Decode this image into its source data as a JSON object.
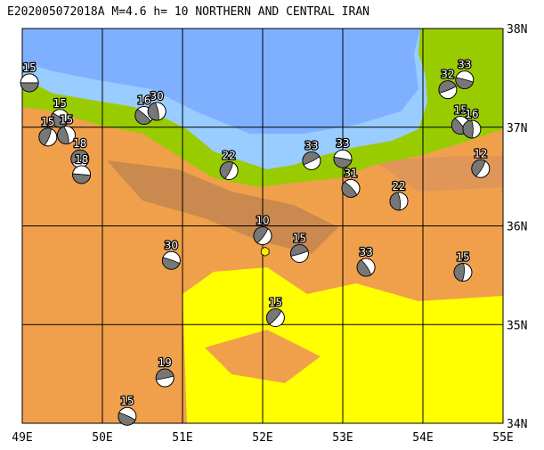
{
  "map": {
    "title": "E202005072018A M=4.6 h= 10 NORTHERN AND CENTRAL IRAN",
    "xlim": [
      49,
      55
    ],
    "ylim": [
      34,
      38
    ],
    "lon_ticks": [
      {
        "value": 49,
        "label": "49E"
      },
      {
        "value": 50,
        "label": "50E"
      },
      {
        "value": 51,
        "label": "51E"
      },
      {
        "value": 52,
        "label": "52E"
      },
      {
        "value": 53,
        "label": "53E"
      },
      {
        "value": 54,
        "label": "54E"
      },
      {
        "value": 55,
        "label": "55E"
      }
    ],
    "lat_ticks": [
      {
        "value": 34,
        "label": "34N"
      },
      {
        "value": 35,
        "label": "35N"
      },
      {
        "value": 36,
        "label": "36N"
      },
      {
        "value": 37,
        "label": "37N"
      },
      {
        "value": 38,
        "label": "38N"
      }
    ],
    "epicenter": {
      "lon": 52.03,
      "lat": 35.74
    },
    "events": [
      {
        "lon": 49.09,
        "lat": 37.45,
        "depth": 15
      },
      {
        "lon": 49.47,
        "lat": 37.09,
        "depth": 15
      },
      {
        "lon": 49.55,
        "lat": 36.92,
        "depth": 15
      },
      {
        "lon": 49.32,
        "lat": 36.9,
        "depth": 15
      },
      {
        "lon": 49.72,
        "lat": 36.68,
        "depth": 18
      },
      {
        "lon": 49.74,
        "lat": 36.52,
        "depth": 18
      },
      {
        "lon": 50.52,
        "lat": 37.12,
        "depth": 16
      },
      {
        "lon": 50.68,
        "lat": 37.16,
        "depth": 30
      },
      {
        "lon": 51.58,
        "lat": 36.56,
        "depth": 22
      },
      {
        "lon": 52.61,
        "lat": 36.66,
        "depth": 33
      },
      {
        "lon": 53.0,
        "lat": 36.68,
        "depth": 33
      },
      {
        "lon": 53.1,
        "lat": 36.38,
        "depth": 31
      },
      {
        "lon": 53.7,
        "lat": 36.25,
        "depth": 22
      },
      {
        "lon": 54.72,
        "lat": 36.58,
        "depth": 12
      },
      {
        "lon": 54.31,
        "lat": 37.38,
        "depth": 32
      },
      {
        "lon": 54.52,
        "lat": 37.48,
        "depth": 33
      },
      {
        "lon": 54.47,
        "lat": 37.02,
        "depth": 15
      },
      {
        "lon": 54.61,
        "lat": 36.98,
        "depth": 16
      },
      {
        "lon": 52.0,
        "lat": 35.9,
        "depth": 10
      },
      {
        "lon": 52.46,
        "lat": 35.72,
        "depth": 15
      },
      {
        "lon": 50.86,
        "lat": 35.65,
        "depth": 30
      },
      {
        "lon": 53.29,
        "lat": 35.58,
        "depth": 33
      },
      {
        "lon": 54.5,
        "lat": 35.53,
        "depth": 15
      },
      {
        "lon": 52.16,
        "lat": 35.07,
        "depth": 15
      },
      {
        "lon": 50.78,
        "lat": 34.46,
        "depth": 19
      },
      {
        "lon": 50.31,
        "lat": 34.07,
        "depth": 15
      }
    ]
  }
}
